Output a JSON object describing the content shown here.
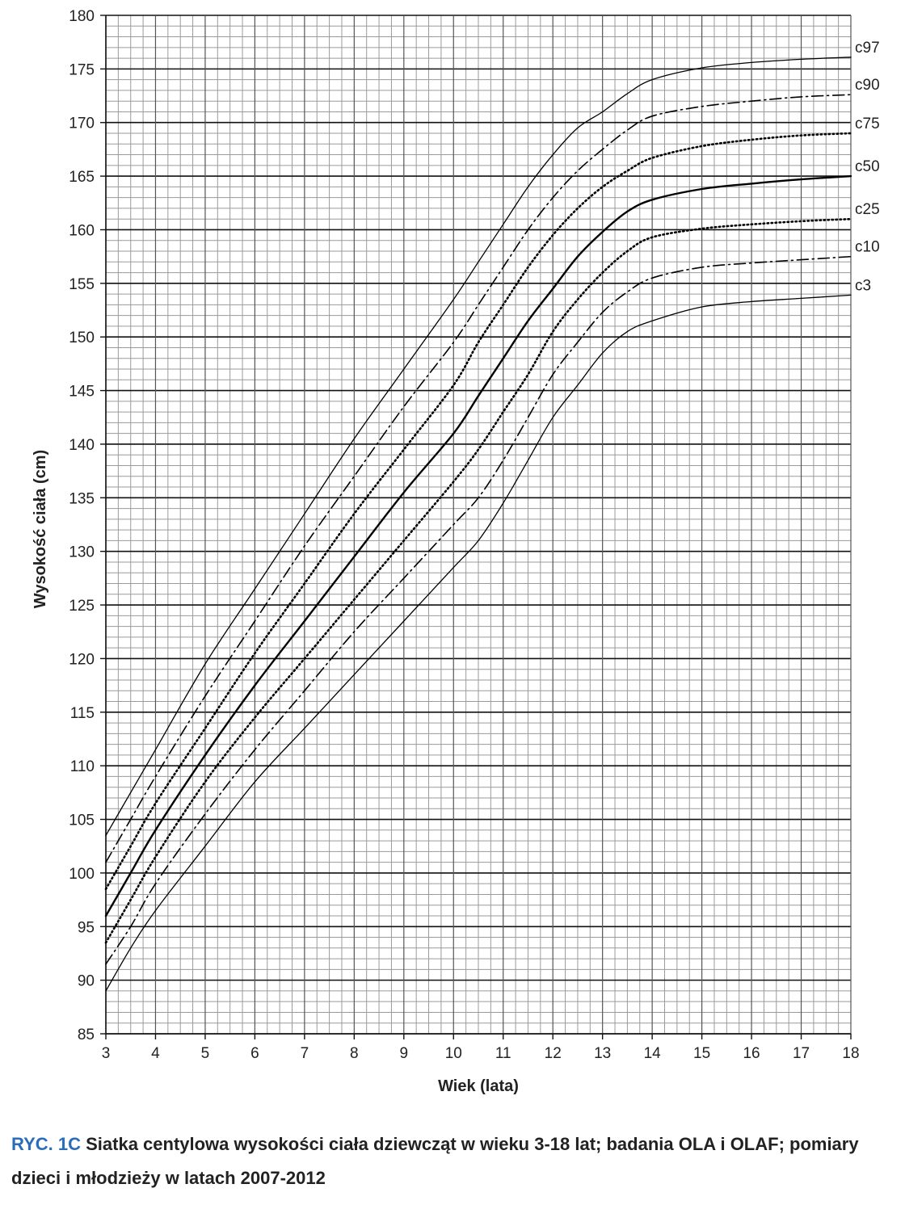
{
  "chart_data": {
    "type": "line",
    "xlabel": "Wiek (lata)",
    "ylabel": "Wysokość ciała (cm)",
    "xlim": [
      3,
      18
    ],
    "ylim": [
      85,
      180
    ],
    "xticks": [
      "3",
      "4",
      "5",
      "6",
      "7",
      "8",
      "9",
      "10",
      "11",
      "12",
      "13",
      "14",
      "15",
      "16",
      "17",
      "18"
    ],
    "yticks": [
      "85",
      "90",
      "95",
      "100",
      "105",
      "110",
      "115",
      "120",
      "125",
      "130",
      "135",
      "140",
      "145",
      "150",
      "155",
      "160",
      "165",
      "170",
      "175",
      "180"
    ],
    "grid": true,
    "series": [
      {
        "name": "c97",
        "style": "solid-thin",
        "x": [
          3,
          3.5,
          4,
          5,
          6,
          7,
          8,
          9,
          10,
          10.5,
          11,
          11.5,
          12,
          12.5,
          13,
          13.5,
          14,
          15,
          16,
          17,
          18
        ],
        "y": [
          103.5,
          107.5,
          111.5,
          119.5,
          126.5,
          133.5,
          140.5,
          147,
          153.5,
          157,
          160.5,
          164,
          167,
          169.5,
          171,
          172.7,
          174,
          175.1,
          175.6,
          175.9,
          176.1
        ]
      },
      {
        "name": "c90",
        "style": "dash-dot",
        "x": [
          3,
          3.5,
          4,
          5,
          6,
          7,
          8,
          9,
          10,
          10.5,
          11,
          11.5,
          12,
          12.5,
          13,
          13.5,
          14,
          15,
          16,
          17,
          18
        ],
        "y": [
          101,
          105,
          109,
          116.5,
          123.5,
          130.5,
          137,
          143.5,
          149.5,
          153,
          156.5,
          160,
          163,
          165.5,
          167.5,
          169.3,
          170.6,
          171.5,
          172,
          172.4,
          172.6
        ]
      },
      {
        "name": "c75",
        "style": "dotted",
        "x": [
          3,
          3.5,
          4,
          5,
          6,
          7,
          8,
          9,
          10,
          10.5,
          11,
          11.5,
          12,
          12.5,
          13,
          13.5,
          14,
          15,
          16,
          17,
          18
        ],
        "y": [
          98.5,
          102.5,
          106.5,
          113.5,
          120.5,
          127,
          133.5,
          139.5,
          145.5,
          149.5,
          153,
          156.5,
          159.5,
          162,
          164,
          165.5,
          166.7,
          167.8,
          168.4,
          168.8,
          169
        ]
      },
      {
        "name": "c50",
        "style": "solid-thick",
        "x": [
          3,
          3.5,
          4,
          5,
          6,
          7,
          8,
          9,
          10,
          10.5,
          11,
          11.5,
          12,
          12.5,
          13,
          13.5,
          14,
          15,
          16,
          17,
          18
        ],
        "y": [
          96,
          100,
          104,
          111,
          117.5,
          123.5,
          129.5,
          135.5,
          141,
          144.5,
          148,
          151.5,
          154.5,
          157.5,
          159.8,
          161.7,
          162.8,
          163.8,
          164.3,
          164.7,
          165
        ]
      },
      {
        "name": "c25",
        "style": "dotted",
        "x": [
          3,
          3.5,
          4,
          5,
          6,
          7,
          8,
          9,
          10,
          10.5,
          11,
          11.5,
          12,
          12.5,
          13,
          13.5,
          14,
          15,
          16,
          17,
          18
        ],
        "y": [
          93.5,
          97.5,
          101.5,
          108.5,
          114.5,
          120,
          125.5,
          131,
          136.5,
          139.5,
          143,
          146.5,
          150.5,
          153.5,
          156,
          158,
          159.3,
          160.1,
          160.5,
          160.8,
          161
        ]
      },
      {
        "name": "c10",
        "style": "dash-dot",
        "x": [
          3,
          3.5,
          4,
          5,
          6,
          7,
          8,
          9,
          10,
          10.5,
          11,
          11.5,
          12,
          12.5,
          13,
          13.5,
          14,
          15,
          16,
          17,
          18
        ],
        "y": [
          91.5,
          95,
          99,
          105.5,
          111.5,
          117,
          122.5,
          127.5,
          132.5,
          135,
          138.5,
          142.5,
          146.5,
          149.5,
          152.3,
          154.2,
          155.5,
          156.5,
          156.9,
          157.2,
          157.5
        ]
      },
      {
        "name": "c3",
        "style": "solid-thin",
        "x": [
          3,
          3.5,
          4,
          5,
          6,
          7,
          8,
          9,
          10,
          10.5,
          11,
          11.5,
          12,
          12.5,
          13,
          13.5,
          14,
          15,
          16,
          17,
          18
        ],
        "y": [
          89,
          93,
          96.5,
          102.5,
          108.5,
          113.5,
          118.5,
          123.5,
          128.5,
          131,
          134.5,
          138.5,
          142.5,
          145.5,
          148.5,
          150.5,
          151.5,
          152.8,
          153.3,
          153.6,
          153.9
        ]
      }
    ]
  },
  "caption": {
    "prefix": "RYC. 1C",
    "text": "Siatka centylowa wysokości ciała dziewcząt w wieku 3-18 lat; badania OLA i OLAF; pomiary dzieci i młodzieży w latach 2007-2012"
  }
}
